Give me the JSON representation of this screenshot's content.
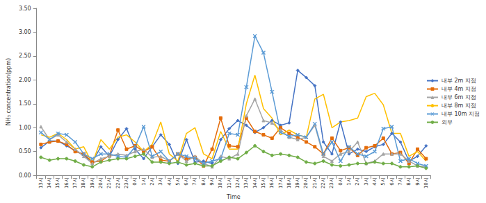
{
  "chart_data": {
    "type": "line",
    "y_label": "NH₃ concentration(ppm)",
    "x_label": "Time",
    "categories": [
      "13시",
      "14시",
      "15시",
      "16시",
      "17시",
      "18시",
      "19시",
      "20시",
      "21시",
      "22시",
      "23시",
      "0시",
      "1시",
      "2시",
      "3시",
      "4시",
      "5시",
      "6시",
      "7시",
      "8시",
      "9시",
      "10시",
      "11시",
      "12시",
      "13시",
      "14시",
      "15시",
      "16시",
      "17시",
      "18시",
      "19시",
      "20시",
      "21시",
      "22시",
      "23시",
      "0시",
      "1시",
      "2시",
      "3시",
      "4시",
      "5시",
      "6시",
      "7시",
      "8시",
      "9시",
      "10시"
    ],
    "series": [
      {
        "name": "내부 2m 지점",
        "color": "#4472C4",
        "marker": "diamond",
        "values": [
          0.58,
          0.72,
          0.72,
          0.62,
          0.52,
          0.42,
          0.28,
          0.6,
          0.4,
          0.75,
          0.98,
          0.55,
          0.35,
          0.6,
          0.85,
          0.65,
          0.25,
          0.75,
          0.28,
          0.3,
          0.25,
          0.75,
          0.98,
          1.15,
          1.05,
          0.9,
          1.0,
          1.15,
          1.05,
          1.1,
          2.2,
          2.05,
          1.88,
          0.7,
          0.45,
          1.12,
          0.45,
          0.55,
          0.5,
          0.6,
          0.65,
          0.88,
          0.7,
          0.3,
          0.4,
          0.62
        ]
      },
      {
        "name": "내부 4m 지점",
        "color": "#E46C0A",
        "marker": "square",
        "values": [
          0.65,
          0.7,
          0.72,
          0.65,
          0.5,
          0.45,
          0.28,
          0.3,
          0.42,
          0.95,
          0.55,
          0.62,
          0.5,
          0.6,
          0.32,
          0.3,
          0.45,
          0.35,
          0.38,
          0.2,
          0.55,
          1.2,
          0.62,
          0.6,
          1.2,
          0.92,
          0.85,
          0.78,
          1.0,
          0.88,
          0.8,
          0.7,
          0.6,
          0.45,
          0.78,
          0.52,
          0.58,
          0.42,
          0.58,
          0.62,
          0.78,
          0.45,
          0.48,
          0.25,
          0.55,
          0.35
        ]
      },
      {
        "name": "내부 6m 지점",
        "color": "#A5A5A5",
        "marker": "triangle",
        "values": [
          1.02,
          0.75,
          0.85,
          0.7,
          0.55,
          0.4,
          0.25,
          0.35,
          0.4,
          0.45,
          0.42,
          0.5,
          0.55,
          0.38,
          0.4,
          0.3,
          0.45,
          0.3,
          0.4,
          0.25,
          0.18,
          0.4,
          0.35,
          0.45,
          1.25,
          1.6,
          1.15,
          1.1,
          0.95,
          0.8,
          0.75,
          0.8,
          1.05,
          0.4,
          0.3,
          0.45,
          0.5,
          0.7,
          0.25,
          0.3,
          0.45,
          0.45,
          0.45,
          0.3,
          0.2,
          0.18
        ]
      },
      {
        "name": "내부 8m 지점",
        "color": "#FFC000",
        "marker": "none",
        "values": [
          0.85,
          0.8,
          0.88,
          0.75,
          0.55,
          0.6,
          0.25,
          0.75,
          0.55,
          0.8,
          0.85,
          0.7,
          0.5,
          0.65,
          1.12,
          0.45,
          0.3,
          0.88,
          1.0,
          0.45,
          0.35,
          0.92,
          0.55,
          0.55,
          1.5,
          2.1,
          1.4,
          1.2,
          0.85,
          0.95,
          0.85,
          0.8,
          1.6,
          1.7,
          1.0,
          1.12,
          1.15,
          1.2,
          1.65,
          1.72,
          1.48,
          0.88,
          0.88,
          0.4,
          0.5,
          0.3
        ]
      },
      {
        "name": "내부 10m 지점",
        "color": "#5B9BD5",
        "marker": "x",
        "values": [
          0.9,
          0.75,
          0.88,
          0.85,
          0.7,
          0.45,
          0.35,
          0.45,
          0.45,
          0.4,
          0.38,
          0.6,
          1.02,
          0.4,
          0.5,
          0.3,
          0.45,
          0.4,
          0.35,
          0.25,
          0.3,
          0.35,
          0.88,
          0.85,
          1.85,
          2.92,
          2.57,
          1.75,
          0.9,
          0.82,
          0.85,
          0.8,
          1.08,
          0.45,
          0.7,
          0.3,
          0.6,
          0.45,
          0.4,
          0.5,
          0.98,
          1.02,
          0.3,
          0.35,
          0.25,
          0.2
        ]
      },
      {
        "name": "외부",
        "color": "#70AD47",
        "marker": "circle",
        "values": [
          0.38,
          0.32,
          0.35,
          0.35,
          0.3,
          0.22,
          0.18,
          0.28,
          0.32,
          0.35,
          0.35,
          0.4,
          0.45,
          0.28,
          0.28,
          0.25,
          0.28,
          0.22,
          0.25,
          0.2,
          0.2,
          0.3,
          0.38,
          0.35,
          0.48,
          0.62,
          0.5,
          0.42,
          0.45,
          0.42,
          0.38,
          0.28,
          0.25,
          0.3,
          0.22,
          0.2,
          0.22,
          0.25,
          0.25,
          0.28,
          0.25,
          0.25,
          0.18,
          0.18,
          0.2,
          0.15
        ]
      }
    ],
    "ylim": [
      0,
      3.5
    ],
    "yticks": [
      {
        "value": 0,
        "label": "0.00"
      },
      {
        "value": 0.5,
        "label": "0.50"
      },
      {
        "value": 1,
        "label": "1.00"
      },
      {
        "value": 1.5,
        "label": "1.50"
      },
      {
        "value": 2,
        "label": "2.00"
      },
      {
        "value": 2.5,
        "label": "2.50"
      },
      {
        "value": 3,
        "label": "3.00"
      },
      {
        "value": 3.5,
        "label": "3.50"
      }
    ],
    "grid": false,
    "legend": "right"
  }
}
